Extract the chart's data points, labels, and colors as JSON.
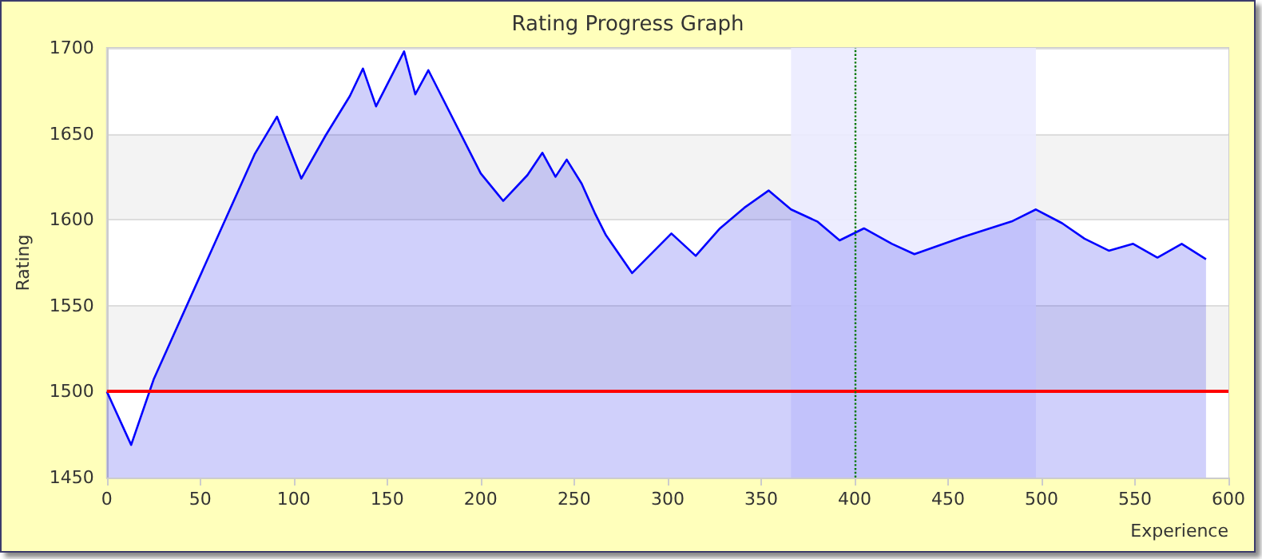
{
  "chart_data": {
    "type": "area",
    "title": "Rating Progress Graph",
    "xlabel": "Experience",
    "ylabel": "Rating",
    "x": [
      0,
      13,
      25,
      79,
      91,
      104,
      117,
      130,
      137,
      144,
      159,
      165,
      172,
      200,
      209,
      212,
      225,
      233,
      240,
      246,
      254,
      261,
      267,
      281,
      302,
      315,
      328,
      341,
      354,
      366,
      380,
      392,
      405,
      420,
      432,
      445,
      458,
      484,
      497,
      511,
      523,
      536,
      549,
      562,
      575,
      588
    ],
    "series": [
      {
        "color": "#0000ff",
        "values": [
          1500,
          1469,
          1507,
          1638,
          1660,
          1624,
          1649,
          1672,
          1688,
          1666,
          1698,
          1673,
          1687,
          1627,
          1615,
          1611,
          1626,
          1639,
          1625,
          1635,
          1621,
          1604,
          1591,
          1569,
          1592,
          1579,
          1595,
          1607,
          1617,
          1606,
          1599,
          1588,
          1595,
          1586,
          1580,
          1585,
          1590,
          1599,
          1606,
          1598,
          1589,
          1582,
          1586,
          1578,
          1586,
          1577
        ]
      }
    ],
    "xlim": [
      0,
      600
    ],
    "xticks": [
      0,
      50,
      100,
      150,
      200,
      250,
      300,
      350,
      400,
      450,
      500,
      550,
      600
    ],
    "ylim": [
      1450,
      1700
    ],
    "yticks": [
      1450,
      1500,
      1550,
      1600,
      1650,
      1700
    ],
    "ref_lines": [
      {
        "axis": "y",
        "value": 1500,
        "color": "#ff0000",
        "line_style": "solid"
      },
      {
        "axis": "x",
        "value": 400,
        "color": "#007700",
        "line_style": "dotted"
      }
    ],
    "bands": [
      {
        "axis": "x",
        "from": 366,
        "to": 497
      }
    ],
    "grid": "y",
    "marker": "none",
    "line_style": "solid"
  }
}
